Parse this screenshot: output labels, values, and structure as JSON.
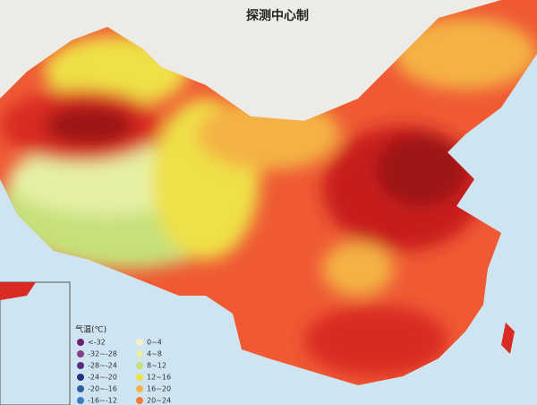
{
  "header": {
    "title": "探测中心制"
  },
  "legend": {
    "title": "气温(℃)",
    "items": [
      {
        "label": "<-32",
        "color": "#6b1f6e"
      },
      {
        "label": "-32~-28",
        "color": "#8a3c8c"
      },
      {
        "label": "-28~-24",
        "color": "#5b2d80"
      },
      {
        "label": "-24~-20",
        "color": "#2c2f7c"
      },
      {
        "label": "-20~-16",
        "color": "#2f5ca2"
      },
      {
        "label": "-16~-12",
        "color": "#3b7bc2"
      },
      {
        "label": "0~4",
        "color": "#f4f0c4"
      },
      {
        "label": "4~8",
        "color": "#e6f0a4"
      },
      {
        "label": "8~12",
        "color": "#c6e07a"
      },
      {
        "label": "12~16",
        "color": "#efe046"
      },
      {
        "label": "16~20",
        "color": "#f4b244"
      },
      {
        "label": "20~24",
        "color": "#ef7b34"
      }
    ]
  }
}
